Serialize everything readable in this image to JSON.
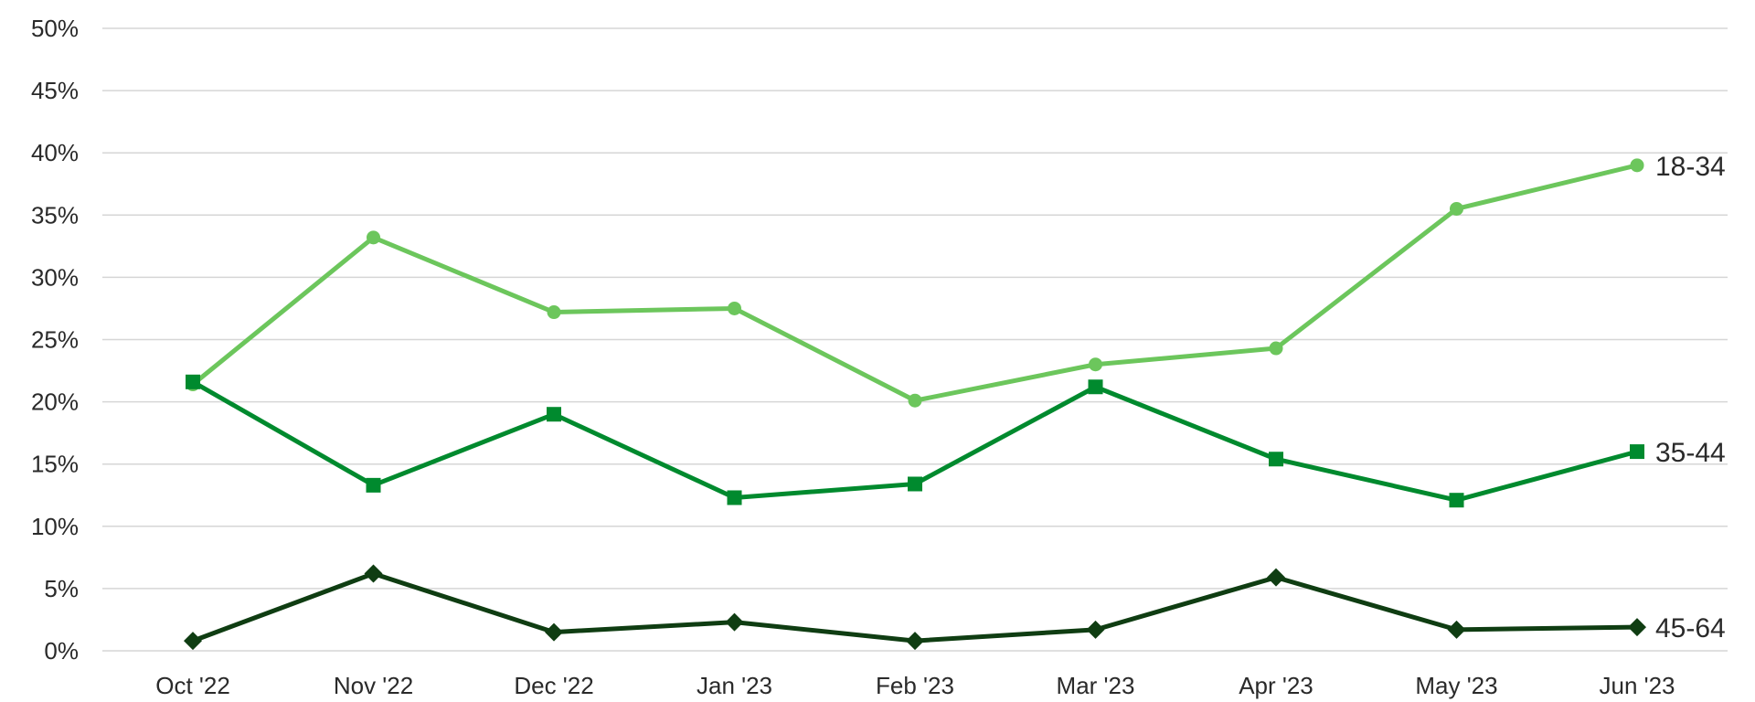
{
  "chart_data": {
    "type": "line",
    "title": "",
    "xlabel": "",
    "ylabel": "",
    "categories": [
      "Oct '22",
      "Nov '22",
      "Dec '22",
      "Jan '23",
      "Feb '23",
      "Mar '23",
      "Apr '23",
      "May '23",
      "Jun '23"
    ],
    "ylim": [
      0,
      50
    ],
    "y_ticks": [
      0,
      5,
      10,
      15,
      20,
      25,
      30,
      35,
      40,
      45,
      50
    ],
    "y_tick_labels": [
      "0%",
      "5%",
      "10%",
      "15%",
      "20%",
      "25%",
      "30%",
      "35%",
      "40%",
      "45%",
      "50%"
    ],
    "grid": true,
    "legend": "end-of-line labels",
    "series": [
      {
        "name": "18-34",
        "color": "#6cc65c",
        "marker": "circle",
        "values": [
          21.4,
          33.2,
          27.2,
          27.5,
          20.1,
          23.0,
          24.3,
          35.5,
          39.0
        ]
      },
      {
        "name": "35-44",
        "color": "#008a2e",
        "marker": "square",
        "values": [
          21.6,
          13.3,
          19.0,
          12.3,
          13.4,
          21.2,
          15.4,
          12.1,
          16.0
        ]
      },
      {
        "name": "45-64",
        "color": "#0f3d12",
        "marker": "diamond",
        "values": [
          0.8,
          6.2,
          1.5,
          2.3,
          0.8,
          1.7,
          5.9,
          1.7,
          1.9
        ]
      }
    ]
  }
}
